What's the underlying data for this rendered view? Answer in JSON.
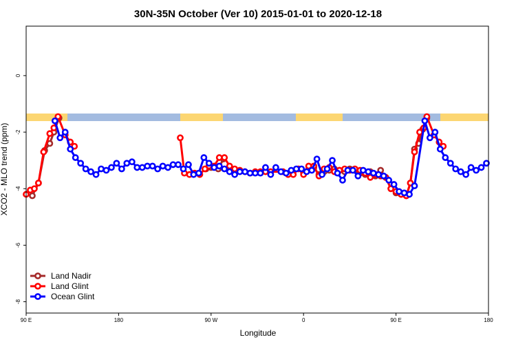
{
  "chart_data": {
    "type": "line",
    "title": "30N-35N October (Ver 10)   2015-01-01 to 2020-12-18",
    "x_label": "Longitude",
    "y_label": "XCO2 - MLO trend (ppm)",
    "xlim": [
      90,
      540
    ],
    "ylim": [
      -8.4,
      1.75
    ],
    "xticks": [
      {
        "value": 90,
        "label": "90 E"
      },
      180,
      {
        "value": 270,
        "label": "90 W"
      },
      {
        "value": 360,
        "label": "0"
      },
      {
        "value": 450,
        "label": "90 E"
      },
      {
        "value": 540,
        "label": "180"
      }
    ],
    "yticks": [
      0,
      -2,
      -4,
      -6,
      -8
    ],
    "legend": "bottomleft",
    "series": [
      {
        "name": "Land Nadir",
        "color": "#a52a2a",
        "x": [
          96,
          102,
          108,
          113,
          117,
          122,
          265,
          270,
          277,
          282,
          360,
          365,
          370,
          375,
          380,
          385,
          390,
          395,
          400,
          405,
          410,
          415,
          420,
          425,
          430,
          435,
          440,
          445,
          450,
          455,
          460,
          464,
          468,
          472,
          476,
          480
        ],
        "values": [
          -4.25,
          -3.8,
          -2.65,
          -2.4,
          -2.0,
          -1.5,
          -3.3,
          -3.25,
          -3.3,
          -2.95,
          -3.45,
          -3.3,
          -3.25,
          -3.5,
          -3.4,
          -3.35,
          -3.3,
          -3.35,
          -3.4,
          -3.3,
          -3.35,
          -3.45,
          -3.5,
          -3.4,
          -3.55,
          -3.35,
          -3.6,
          -4.0,
          -4.15,
          -4.2,
          -4.25,
          -3.8,
          -2.6,
          -2.4,
          -1.9,
          -1.5
        ]
      },
      {
        "name": "Land Glint",
        "color": "#ff0000",
        "x": [
          90,
          94,
          98,
          102,
          107,
          113,
          117,
          121,
          128,
          133,
          137,
          240,
          244,
          249,
          254,
          259,
          264,
          268,
          273,
          278,
          283,
          288,
          293,
          298,
          303,
          308,
          313,
          318,
          323,
          328,
          340,
          345,
          350,
          355,
          360,
          365,
          370,
          375,
          380,
          385,
          390,
          395,
          400,
          405,
          410,
          415,
          420,
          425,
          430,
          435,
          440,
          445,
          450,
          455,
          460,
          464,
          468,
          473,
          477,
          480,
          487,
          492,
          496
        ],
        "values": [
          -4.2,
          -4.05,
          -4.0,
          -3.8,
          -2.7,
          -2.05,
          -1.85,
          -1.45,
          -2.1,
          -2.35,
          -2.5,
          -2.2,
          -3.45,
          -3.5,
          -3.45,
          -3.5,
          -3.3,
          -3.2,
          -3.2,
          -2.9,
          -2.9,
          -3.2,
          -3.3,
          -3.35,
          -3.4,
          -3.45,
          -3.4,
          -3.4,
          -3.4,
          -3.4,
          -3.4,
          -3.5,
          -3.5,
          -3.3,
          -3.5,
          -3.2,
          -3.2,
          -3.55,
          -3.3,
          -3.25,
          -3.4,
          -3.35,
          -3.3,
          -3.35,
          -3.3,
          -3.35,
          -3.45,
          -3.6,
          -3.5,
          -3.55,
          -3.6,
          -4.0,
          -4.1,
          -4.2,
          -4.25,
          -3.8,
          -2.7,
          -2.0,
          -1.85,
          -1.45,
          -2.1,
          -2.35,
          -2.5
        ]
      },
      {
        "name": "Ocean Glint",
        "color": "#0000ff",
        "x": [
          118,
          123,
          128,
          133,
          138,
          143,
          148,
          153,
          158,
          163,
          168,
          173,
          178,
          183,
          188,
          193,
          198,
          203,
          208,
          213,
          218,
          223,
          228,
          233,
          238,
          243,
          248,
          253,
          258,
          263,
          268,
          273,
          278,
          283,
          288,
          293,
          298,
          303,
          308,
          313,
          318,
          323,
          328,
          333,
          338,
          343,
          348,
          353,
          358,
          363,
          368,
          373,
          378,
          383,
          388,
          393,
          398,
          403,
          408,
          413,
          418,
          423,
          428,
          433,
          438,
          443,
          448,
          453,
          458,
          463,
          468,
          478,
          483,
          488,
          493,
          498,
          503,
          508,
          513,
          518,
          523,
          528,
          533,
          538
        ],
        "values": [
          -1.6,
          -2.2,
          -2.0,
          -2.6,
          -2.9,
          -3.1,
          -3.3,
          -3.4,
          -3.5,
          -3.3,
          -3.35,
          -3.25,
          -3.1,
          -3.3,
          -3.1,
          -3.05,
          -3.25,
          -3.25,
          -3.2,
          -3.2,
          -3.3,
          -3.2,
          -3.25,
          -3.15,
          -3.15,
          -3.3,
          -3.15,
          -3.5,
          -3.45,
          -2.9,
          -3.1,
          -3.25,
          -3.2,
          -3.3,
          -3.4,
          -3.5,
          -3.4,
          -3.4,
          -3.45,
          -3.45,
          -3.45,
          -3.25,
          -3.5,
          -3.25,
          -3.4,
          -3.45,
          -3.35,
          -3.3,
          -3.3,
          -3.4,
          -3.35,
          -2.95,
          -3.5,
          -3.3,
          -3.0,
          -3.45,
          -3.7,
          -3.35,
          -3.35,
          -3.55,
          -3.35,
          -3.4,
          -3.45,
          -3.5,
          -3.55,
          -3.7,
          -3.85,
          -4.1,
          -4.15,
          -4.2,
          -3.9,
          -1.6,
          -2.2,
          -2.0,
          -2.6,
          -2.9,
          -3.1,
          -3.3,
          -3.4,
          -3.5,
          -3.25,
          -3.35,
          -3.25,
          -3.1
        ]
      }
    ]
  }
}
